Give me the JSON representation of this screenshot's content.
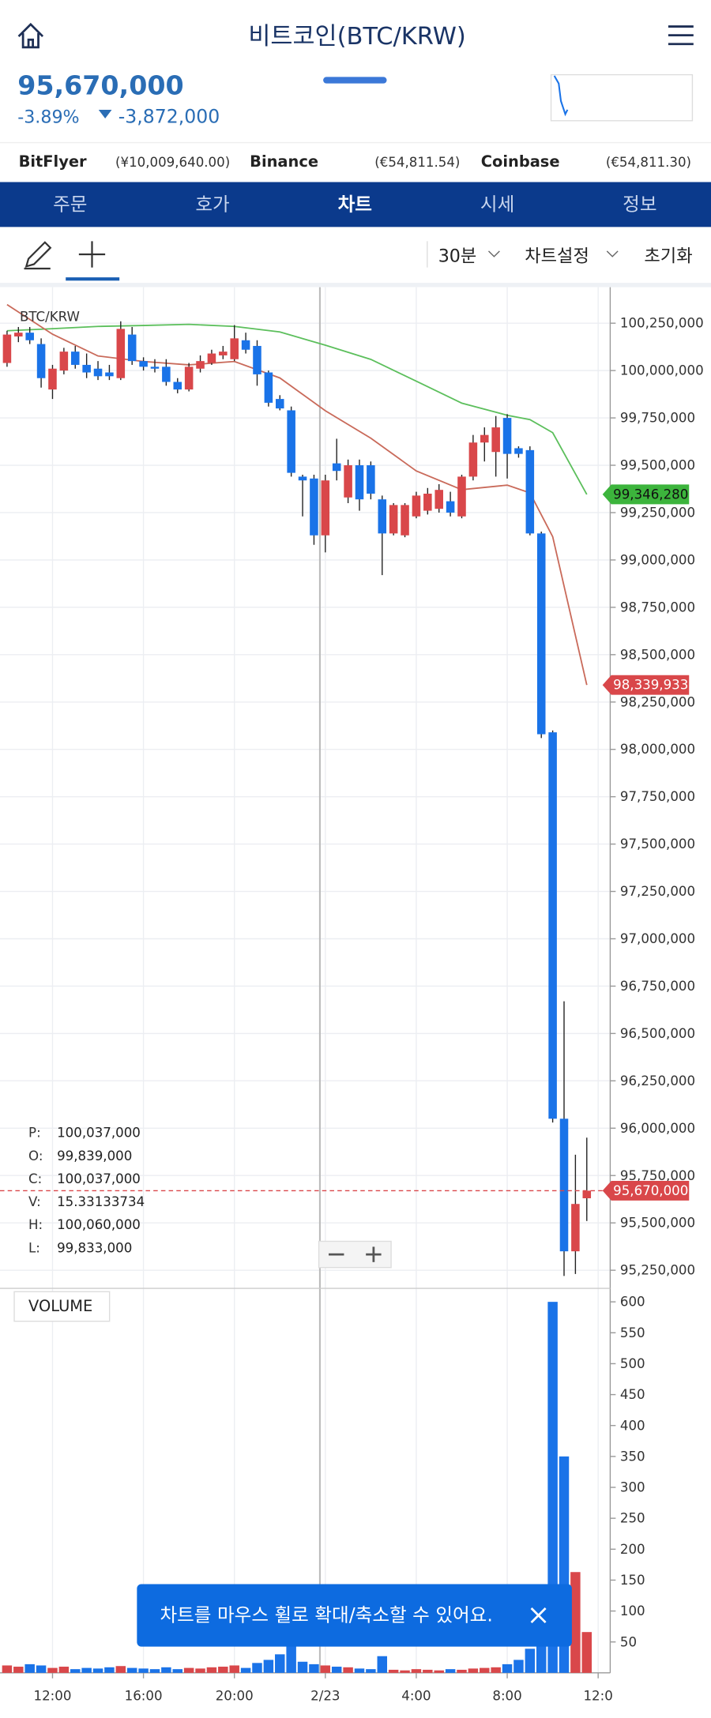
{
  "header": {
    "title": "비트코인(BTC/KRW)"
  },
  "quote": {
    "price": "95,670,000",
    "change_pct": "-3.89%",
    "change": "-3,872,000"
  },
  "exchanges": [
    {
      "name": "BitFlyer",
      "price": "(¥10,009,640.00)"
    },
    {
      "name": "Binance",
      "price": "(€54,811.54)"
    },
    {
      "name": "Coinbase",
      "price": "(€54,811.30)"
    }
  ],
  "tabs": [
    "주문",
    "호가",
    "차트",
    "시세",
    "정보"
  ],
  "active_tab": 2,
  "toolbar": {
    "interval": "30분",
    "settings": "차트설정",
    "reset": "초기화"
  },
  "chart_label": "BTC/KRW",
  "ohlc_info": [
    {
      "label": "P:",
      "value": "100,037,000"
    },
    {
      "label": "O:",
      "value": "99,839,000"
    },
    {
      "label": "C:",
      "value": "100,037,000"
    },
    {
      "label": "V:",
      "value": "15.33133734"
    },
    {
      "label": "H:",
      "value": "100,060,000"
    },
    {
      "label": "L:",
      "value": "99,833,000"
    }
  ],
  "volume_label": "VOLUME",
  "toast": "차트를 마우스 휠로 확대/축소할 수 있어요.",
  "price_tags": [
    {
      "value": 99346280,
      "label": "99,346,280",
      "color": "#3cb43c"
    },
    {
      "value": 98339933,
      "label": "98,339,933",
      "color": "#d9474a"
    },
    {
      "value": 95670000,
      "label": "95,670,000",
      "color": "#d9474a"
    }
  ],
  "chart_data": [
    {
      "type": "candlestick",
      "up_color": "#d9474a",
      "down_color": "#1a73e8",
      "grid": true,
      "xlim": [
        -2.31,
        24.53
      ],
      "ylim": [
        95160000,
        100440000
      ],
      "xticks": [
        {
          "value": 0,
          "label": "12:00"
        },
        {
          "value": 4,
          "label": "16:00"
        },
        {
          "value": 8,
          "label": "20:00"
        },
        {
          "value": 12,
          "label": "2/23"
        },
        {
          "value": 16,
          "label": "4:00"
        },
        {
          "value": 20,
          "label": "8:00"
        },
        {
          "value": 24,
          "label": "12:0"
        }
      ],
      "yticks": [
        {
          "value": 95250000,
          "label": "95,250,000"
        },
        {
          "value": 95500000,
          "label": "95,500,000"
        },
        {
          "value": 95750000,
          "label": "95,750,000"
        },
        {
          "value": 96000000,
          "label": "96,000,000"
        },
        {
          "value": 96250000,
          "label": "96,250,000"
        },
        {
          "value": 96500000,
          "label": "96,500,000"
        },
        {
          "value": 96750000,
          "label": "96,750,000"
        },
        {
          "value": 97000000,
          "label": "97,000,000"
        },
        {
          "value": 97250000,
          "label": "97,250,000"
        },
        {
          "value": 97500000,
          "label": "97,500,000"
        },
        {
          "value": 97750000,
          "label": "97,750,000"
        },
        {
          "value": 98000000,
          "label": "98,000,000"
        },
        {
          "value": 98250000,
          "label": "98,250,000"
        },
        {
          "value": 98500000,
          "label": "98,500,000"
        },
        {
          "value": 98750000,
          "label": "98,750,000"
        },
        {
          "value": 99000000,
          "label": "99,000,000"
        },
        {
          "value": 99250000,
          "label": "99,250,000"
        },
        {
          "value": 99500000,
          "label": "99,500,000"
        },
        {
          "value": 99750000,
          "label": "99,750,000"
        },
        {
          "value": 100000000,
          "label": "100,000,000"
        },
        {
          "value": 100250000,
          "label": "100,250,000"
        }
      ],
      "x": [
        -2,
        -1.5,
        -1,
        -0.5,
        0,
        0.5,
        1,
        1.5,
        2,
        2.5,
        3,
        3.5,
        4,
        4.5,
        5,
        5.5,
        6,
        6.5,
        7,
        7.5,
        8,
        8.5,
        9,
        9.5,
        10,
        10.5,
        11,
        11.5,
        12,
        12.5,
        13,
        13.5,
        14,
        14.5,
        15,
        15.5,
        16,
        16.5,
        17,
        17.5,
        18,
        18.5,
        19,
        19.5,
        20,
        20.5,
        21,
        21.5,
        22,
        22.5,
        23,
        23.5
      ],
      "open": [
        100040000,
        100180000,
        100200000,
        100140000,
        99900000,
        100000000,
        100100000,
        100030000,
        100010000,
        99990000,
        99960000,
        100190000,
        100050000,
        100020000,
        100020000,
        99940000,
        99900000,
        100010000,
        100040000,
        100080000,
        100060000,
        100160000,
        100130000,
        99990000,
        99850000,
        99790000,
        99440000,
        99430000,
        99130000,
        99510000,
        99330000,
        99500000,
        99500000,
        99320000,
        99140000,
        99130000,
        99230000,
        99260000,
        99270000,
        99310000,
        99230000,
        99440000,
        99620000,
        99570000,
        99750000,
        99590000,
        99580000,
        99140000,
        98090000,
        96050000,
        95350000,
        95630000
      ],
      "high": [
        100210000,
        100230000,
        100230000,
        100170000,
        100030000,
        100120000,
        100130000,
        100090000,
        100050000,
        100030000,
        100260000,
        100230000,
        100070000,
        100060000,
        100060000,
        99960000,
        100040000,
        100080000,
        100110000,
        100130000,
        100240000,
        100200000,
        100160000,
        100000000,
        99870000,
        99810000,
        99450000,
        99450000,
        99450000,
        99640000,
        99530000,
        99530000,
        99520000,
        99340000,
        99300000,
        99300000,
        99360000,
        99380000,
        99400000,
        99360000,
        99450000,
        99660000,
        99700000,
        99760000,
        99770000,
        99600000,
        99600000,
        99150000,
        98100000,
        96670000,
        95860000,
        95950000
      ],
      "low": [
        100020000,
        100150000,
        100140000,
        99910000,
        99850000,
        99980000,
        100010000,
        99960000,
        99950000,
        99950000,
        99950000,
        100030000,
        100000000,
        99990000,
        99920000,
        99880000,
        99890000,
        99990000,
        100030000,
        100060000,
        100050000,
        100090000,
        99920000,
        99810000,
        99790000,
        99440000,
        99230000,
        99080000,
        99040000,
        99420000,
        99300000,
        99260000,
        99320000,
        98920000,
        99130000,
        99120000,
        99220000,
        99240000,
        99250000,
        99230000,
        99220000,
        99420000,
        99520000,
        99440000,
        99430000,
        99540000,
        99130000,
        98060000,
        96030000,
        95220000,
        95230000,
        95510000
      ],
      "close": [
        100190000,
        100200000,
        100160000,
        99960000,
        100010000,
        100100000,
        100030000,
        99990000,
        99970000,
        99970000,
        100220000,
        100050000,
        100020000,
        100010000,
        99940000,
        99900000,
        100020000,
        100050000,
        100090000,
        100100000,
        100170000,
        100110000,
        99980000,
        99830000,
        99800000,
        99460000,
        99420000,
        99130000,
        99420000,
        99470000,
        99500000,
        99320000,
        99350000,
        99140000,
        99290000,
        99290000,
        99340000,
        99350000,
        99370000,
        99250000,
        99440000,
        99620000,
        99660000,
        99700000,
        99560000,
        99560000,
        99140000,
        98080000,
        96050000,
        95350000,
        95600000,
        95670000
      ],
      "overlays": [
        {
          "color": "#5cbf5c",
          "x": [
            -2,
            0,
            2,
            4,
            6,
            8,
            10,
            12,
            14,
            16,
            18,
            20,
            21,
            22,
            23.5
          ],
          "values": [
            100210000,
            100221000,
            100233000,
            100238000,
            100244000,
            100233000,
            100204000,
            100134000,
            100059000,
            99944000,
            99828000,
            99764000,
            99741000,
            99672000,
            99346280
          ]
        },
        {
          "color": "#c96a5a",
          "x": [
            -2,
            0,
            2,
            4,
            6,
            8,
            10,
            12,
            14,
            16,
            18,
            20,
            21,
            22,
            23.5
          ],
          "values": [
            100348000,
            100192000,
            100077000,
            100048000,
            100030000,
            100048000,
            99961000,
            99788000,
            99643000,
            99470000,
            99371000,
            99395000,
            99354000,
            99123000,
            98339933
          ]
        }
      ]
    },
    {
      "type": "bar",
      "xlim": [
        -2.31,
        24.53
      ],
      "ylim": [
        0,
        620
      ],
      "yticks": [
        50,
        100,
        150,
        200,
        250,
        300,
        350,
        400,
        450,
        500,
        550,
        600
      ],
      "x": [
        -2,
        -1.5,
        -1,
        -0.5,
        0,
        0.5,
        1,
        1.5,
        2,
        2.5,
        3,
        3.5,
        4,
        4.5,
        5,
        5.5,
        6,
        6.5,
        7,
        7.5,
        8,
        8.5,
        9,
        9.5,
        10,
        10.5,
        11,
        11.5,
        12,
        12.5,
        13,
        13.5,
        14,
        14.5,
        15,
        15.5,
        16,
        16.5,
        17,
        17.5,
        18,
        18.5,
        19,
        19.5,
        20,
        20.5,
        21,
        21.5,
        22,
        22.5,
        23,
        23.5
      ],
      "values": [
        12,
        10,
        14,
        12,
        8,
        10,
        6,
        8,
        7,
        9,
        11,
        8,
        7,
        6,
        9,
        6,
        8,
        7,
        9,
        10,
        12,
        8,
        16,
        21,
        30,
        43,
        18,
        14,
        12,
        10,
        9,
        7,
        6,
        27,
        5,
        4,
        6,
        5,
        4,
        6,
        5,
        7,
        8,
        9,
        14,
        21,
        39,
        83,
        600,
        350,
        163,
        66
      ]
    }
  ]
}
